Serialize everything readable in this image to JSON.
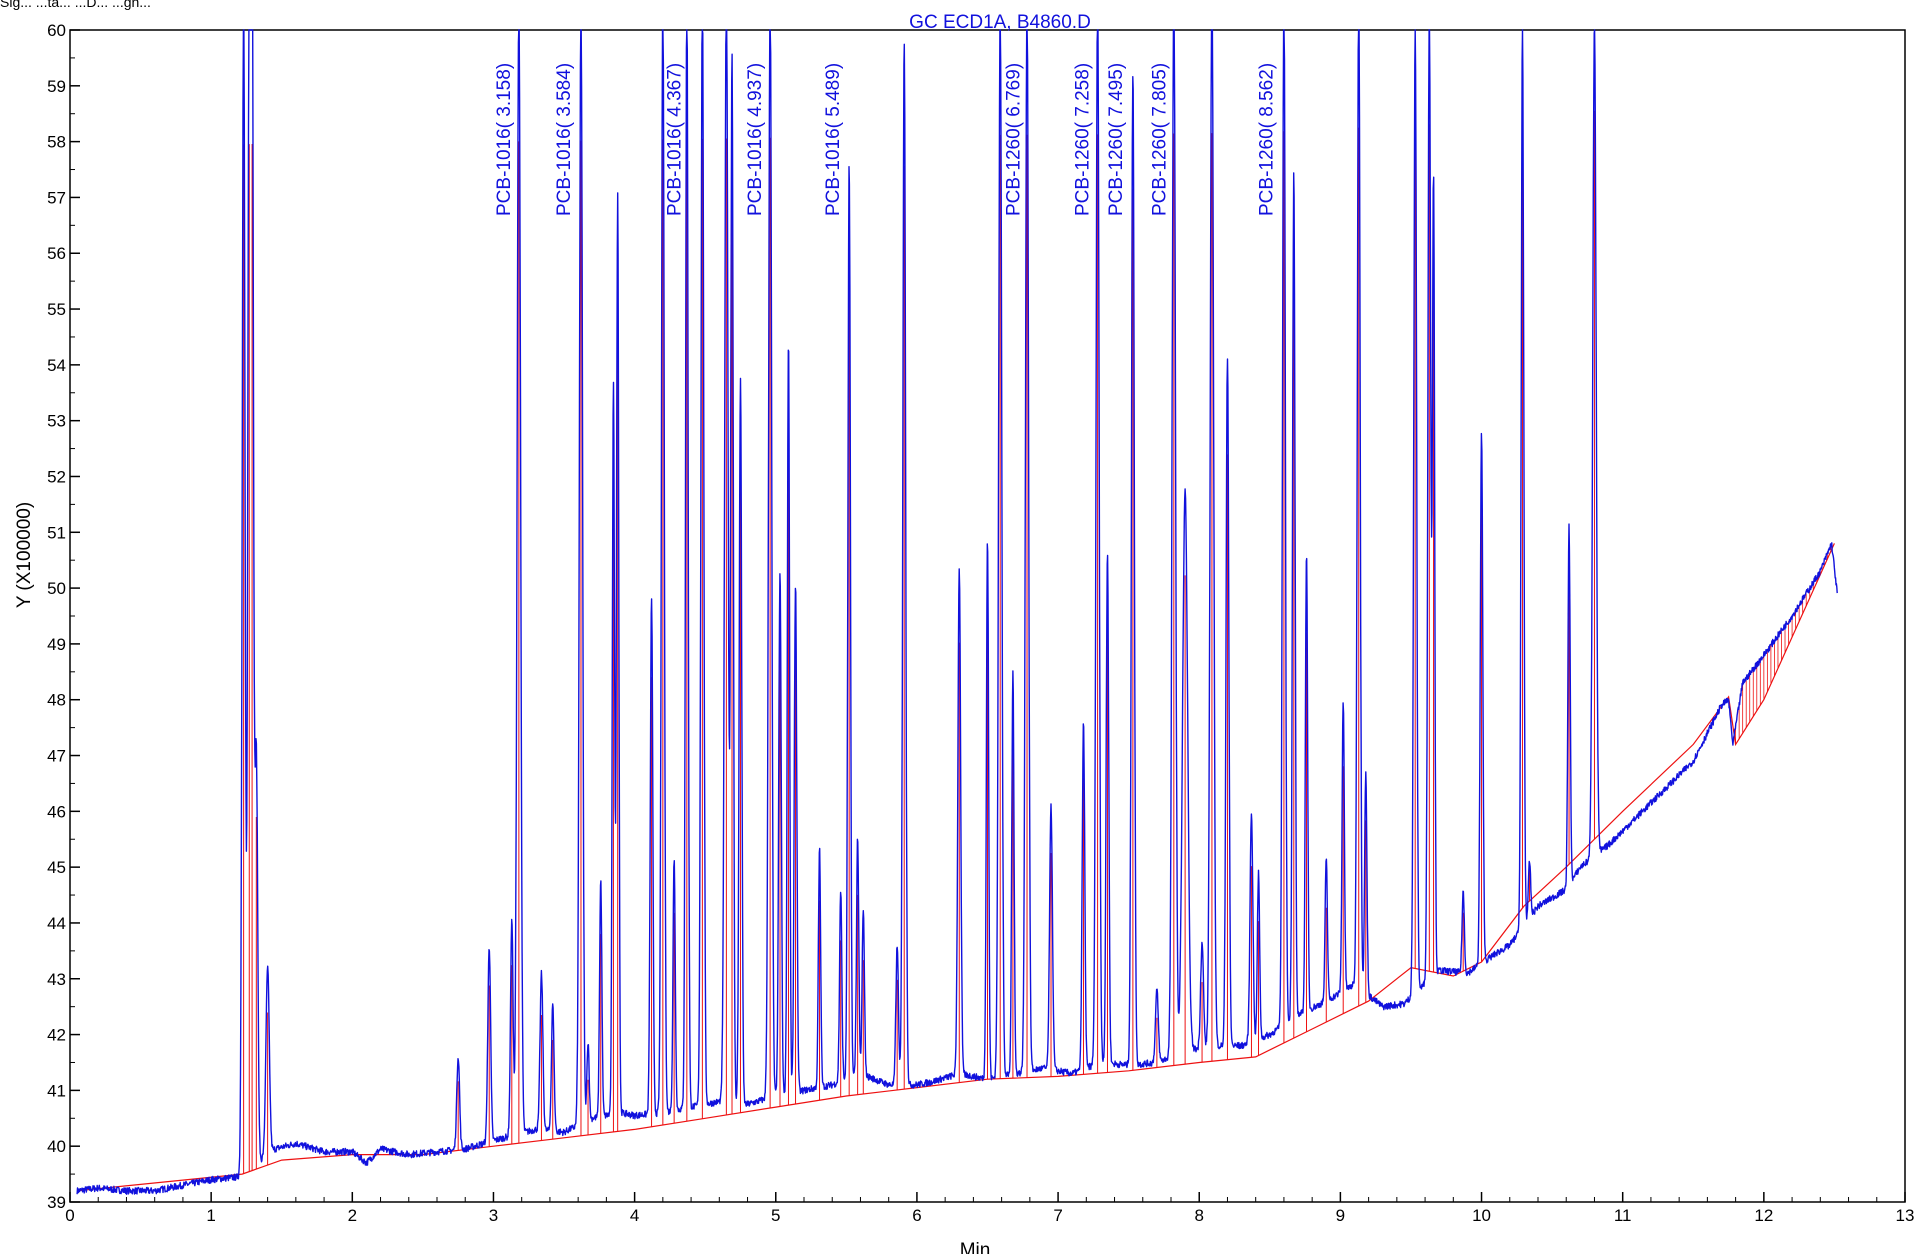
{
  "header_fragment": "Sig... ...ta... ...D... ...gn...",
  "chart_data": {
    "type": "line",
    "title": "GC ECD1A, B4860.D",
    "xlabel": "Min",
    "ylabel": "Y (X100000)",
    "xlim": [
      0,
      13
    ],
    "ylim": [
      39,
      60
    ],
    "x_ticks": [
      "0",
      "1",
      "2",
      "3",
      "4",
      "5",
      "6",
      "7",
      "8",
      "9",
      "10",
      "11",
      "12",
      "13"
    ],
    "y_ticks": [
      "39",
      "40",
      "41",
      "42",
      "43",
      "44",
      "45",
      "46",
      "47",
      "48",
      "49",
      "50",
      "51",
      "52",
      "53",
      "54",
      "55",
      "56",
      "57",
      "58",
      "59",
      "60"
    ],
    "grid": false,
    "legend": "none",
    "colors": {
      "signal": "#1111dd",
      "baseline": "#ee1111",
      "axis": "#000000",
      "label": "#1111dd"
    },
    "peak_labels": [
      {
        "text": "PCB-1016( 3.158)",
        "x": 3.158
      },
      {
        "text": "PCB-1016( 3.584)",
        "x": 3.584
      },
      {
        "text": "PCB-1016( 4.367)",
        "x": 4.367
      },
      {
        "text": "PCB-1016( 4.937)",
        "x": 4.937
      },
      {
        "text": "PCB-1016( 5.489)",
        "x": 5.489
      },
      {
        "text": "PCB-1260( 6.769)",
        "x": 6.769
      },
      {
        "text": "PCB-1260( 7.258)",
        "x": 7.258
      },
      {
        "text": "PCB-1260( 7.495)",
        "x": 7.495
      },
      {
        "text": "PCB-1260( 7.805)",
        "x": 7.805
      },
      {
        "text": "PCB-1260( 8.562)",
        "x": 8.562
      }
    ],
    "baseline": [
      [
        0.05,
        39.2
      ],
      [
        1.22,
        39.5
      ],
      [
        1.5,
        39.75
      ],
      [
        2.0,
        39.85
      ],
      [
        2.5,
        39.85
      ],
      [
        3.0,
        40.0
      ],
      [
        3.5,
        40.15
      ],
      [
        4.0,
        40.3
      ],
      [
        4.5,
        40.5
      ],
      [
        5.0,
        40.7
      ],
      [
        5.5,
        40.9
      ],
      [
        6.0,
        41.05
      ],
      [
        6.5,
        41.2
      ],
      [
        7.0,
        41.25
      ],
      [
        7.5,
        41.35
      ],
      [
        8.0,
        41.5
      ],
      [
        8.4,
        41.6
      ],
      [
        8.8,
        42.1
      ],
      [
        9.2,
        42.6
      ],
      [
        9.5,
        43.2
      ],
      [
        9.8,
        43.05
      ],
      [
        10.0,
        43.3
      ],
      [
        10.3,
        44.3
      ],
      [
        10.6,
        45.0
      ],
      [
        11.0,
        46.0
      ],
      [
        11.5,
        47.2
      ],
      [
        11.75,
        48.05
      ],
      [
        11.8,
        47.2
      ],
      [
        12.0,
        48.0
      ],
      [
        12.5,
        50.8
      ]
    ],
    "noise": [
      [
        0.05,
        39.2
      ],
      [
        0.2,
        39.25
      ],
      [
        0.4,
        39.2
      ],
      [
        0.6,
        39.2
      ],
      [
        0.8,
        39.3
      ],
      [
        1.0,
        39.4
      ],
      [
        1.2,
        39.45
      ],
      [
        1.45,
        39.95
      ],
      [
        1.6,
        40.05
      ],
      [
        1.8,
        39.9
      ],
      [
        2.0,
        39.9
      ],
      [
        2.1,
        39.7
      ],
      [
        2.2,
        39.95
      ],
      [
        2.4,
        39.85
      ],
      [
        2.6,
        39.9
      ],
      [
        2.8,
        39.95
      ],
      [
        3.0,
        40.1
      ],
      [
        3.3,
        40.3
      ],
      [
        3.5,
        40.25
      ],
      [
        3.7,
        40.5
      ],
      [
        3.9,
        40.6
      ],
      [
        4.0,
        40.55
      ],
      [
        4.2,
        40.6
      ],
      [
        4.4,
        40.7
      ],
      [
        4.6,
        40.8
      ],
      [
        4.8,
        40.75
      ],
      [
        5.0,
        40.9
      ],
      [
        5.2,
        41.0
      ],
      [
        5.4,
        41.1
      ],
      [
        5.6,
        41.3
      ],
      [
        5.8,
        41.1
      ],
      [
        6.0,
        41.1
      ],
      [
        6.1,
        41.15
      ],
      [
        6.3,
        41.3
      ],
      [
        6.5,
        41.2
      ],
      [
        6.7,
        41.3
      ],
      [
        6.9,
        41.4
      ],
      [
        7.1,
        41.3
      ],
      [
        7.3,
        41.5
      ],
      [
        7.5,
        41.45
      ],
      [
        7.7,
        41.5
      ],
      [
        7.9,
        41.7
      ],
      [
        8.1,
        41.8
      ],
      [
        8.3,
        41.8
      ],
      [
        8.5,
        42.0
      ],
      [
        8.7,
        42.35
      ],
      [
        8.9,
        42.6
      ],
      [
        9.1,
        42.9
      ],
      [
        9.3,
        42.5
      ],
      [
        9.45,
        42.55
      ],
      [
        9.7,
        43.15
      ],
      [
        9.9,
        43.1
      ],
      [
        10.1,
        43.45
      ],
      [
        10.2,
        43.6
      ],
      [
        10.4,
        44.3
      ],
      [
        10.6,
        44.6
      ],
      [
        10.7,
        45.0
      ],
      [
        10.9,
        45.4
      ],
      [
        11.1,
        45.9
      ],
      [
        11.3,
        46.4
      ],
      [
        11.5,
        46.9
      ],
      [
        11.7,
        47.9
      ],
      [
        11.75,
        48.0
      ],
      [
        11.78,
        47.2
      ],
      [
        11.85,
        48.3
      ],
      [
        12.0,
        48.8
      ],
      [
        12.2,
        49.5
      ],
      [
        12.4,
        50.3
      ],
      [
        12.48,
        50.8
      ],
      [
        12.52,
        49.9
      ]
    ],
    "peaks": [
      [
        1.23,
        60.5,
        0.01
      ],
      [
        1.27,
        60.5,
        0.01
      ],
      [
        1.29,
        60.5,
        0.01
      ],
      [
        1.32,
        46.9,
        0.01
      ],
      [
        1.4,
        43.0,
        0.012
      ],
      [
        2.75,
        41.6,
        0.01
      ],
      [
        2.97,
        43.5,
        0.01
      ],
      [
        3.13,
        43.9,
        0.009
      ],
      [
        3.18,
        60.5,
        0.012
      ],
      [
        3.34,
        42.9,
        0.01
      ],
      [
        3.42,
        42.4,
        0.009
      ],
      [
        3.62,
        60.5,
        0.011
      ],
      [
        3.67,
        41.6,
        0.008
      ],
      [
        3.76,
        44.5,
        0.008
      ],
      [
        3.85,
        53.4,
        0.008
      ],
      [
        3.88,
        56.8,
        0.008
      ],
      [
        4.12,
        49.6,
        0.009
      ],
      [
        4.2,
        60.5,
        0.01
      ],
      [
        4.28,
        44.9,
        0.008
      ],
      [
        4.37,
        60.5,
        0.009
      ],
      [
        4.48,
        60.5,
        0.01
      ],
      [
        4.65,
        60.5,
        0.012
      ],
      [
        4.69,
        59.4,
        0.009
      ],
      [
        4.75,
        53.6,
        0.009
      ],
      [
        4.96,
        60.5,
        0.011
      ],
      [
        5.03,
        50.1,
        0.009
      ],
      [
        5.09,
        54.3,
        0.008
      ],
      [
        5.14,
        49.9,
        0.009
      ],
      [
        5.31,
        45.1,
        0.008
      ],
      [
        5.46,
        44.3,
        0.008
      ],
      [
        5.52,
        57.3,
        0.009
      ],
      [
        5.58,
        45.2,
        0.008
      ],
      [
        5.62,
        43.9,
        0.008
      ],
      [
        5.86,
        43.5,
        0.009
      ],
      [
        5.91,
        59.7,
        0.01
      ],
      [
        6.3,
        50.2,
        0.01
      ],
      [
        6.5,
        50.9,
        0.008
      ],
      [
        6.59,
        60.5,
        0.011
      ],
      [
        6.68,
        48.5,
        0.008
      ],
      [
        6.78,
        60.5,
        0.011
      ],
      [
        6.95,
        46.0,
        0.01
      ],
      [
        7.18,
        47.5,
        0.009
      ],
      [
        7.28,
        60.5,
        0.011
      ],
      [
        7.35,
        50.5,
        0.009
      ],
      [
        7.53,
        59.2,
        0.01
      ],
      [
        7.7,
        42.7,
        0.01
      ],
      [
        7.82,
        60.5,
        0.012
      ],
      [
        7.9,
        51.5,
        0.018
      ],
      [
        8.02,
        43.4,
        0.01
      ],
      [
        8.09,
        60.5,
        0.012
      ],
      [
        8.2,
        53.9,
        0.01
      ],
      [
        8.37,
        45.7,
        0.01
      ],
      [
        8.42,
        44.6,
        0.008
      ],
      [
        8.6,
        60.5,
        0.01
      ],
      [
        8.67,
        57.1,
        0.009
      ],
      [
        8.76,
        50.3,
        0.008
      ],
      [
        8.9,
        44.8,
        0.008
      ],
      [
        9.02,
        47.6,
        0.008
      ],
      [
        9.13,
        60.5,
        0.01
      ],
      [
        9.18,
        46.5,
        0.008
      ],
      [
        9.53,
        60.5,
        0.01
      ],
      [
        9.63,
        60.5,
        0.01
      ],
      [
        9.66,
        57.4,
        0.008
      ],
      [
        9.87,
        44.6,
        0.008
      ],
      [
        10.0,
        52.8,
        0.009
      ],
      [
        10.29,
        60.5,
        0.009
      ],
      [
        10.34,
        45.4,
        0.008
      ],
      [
        10.62,
        51.5,
        0.008
      ],
      [
        10.8,
        60.5,
        0.012
      ]
    ]
  }
}
